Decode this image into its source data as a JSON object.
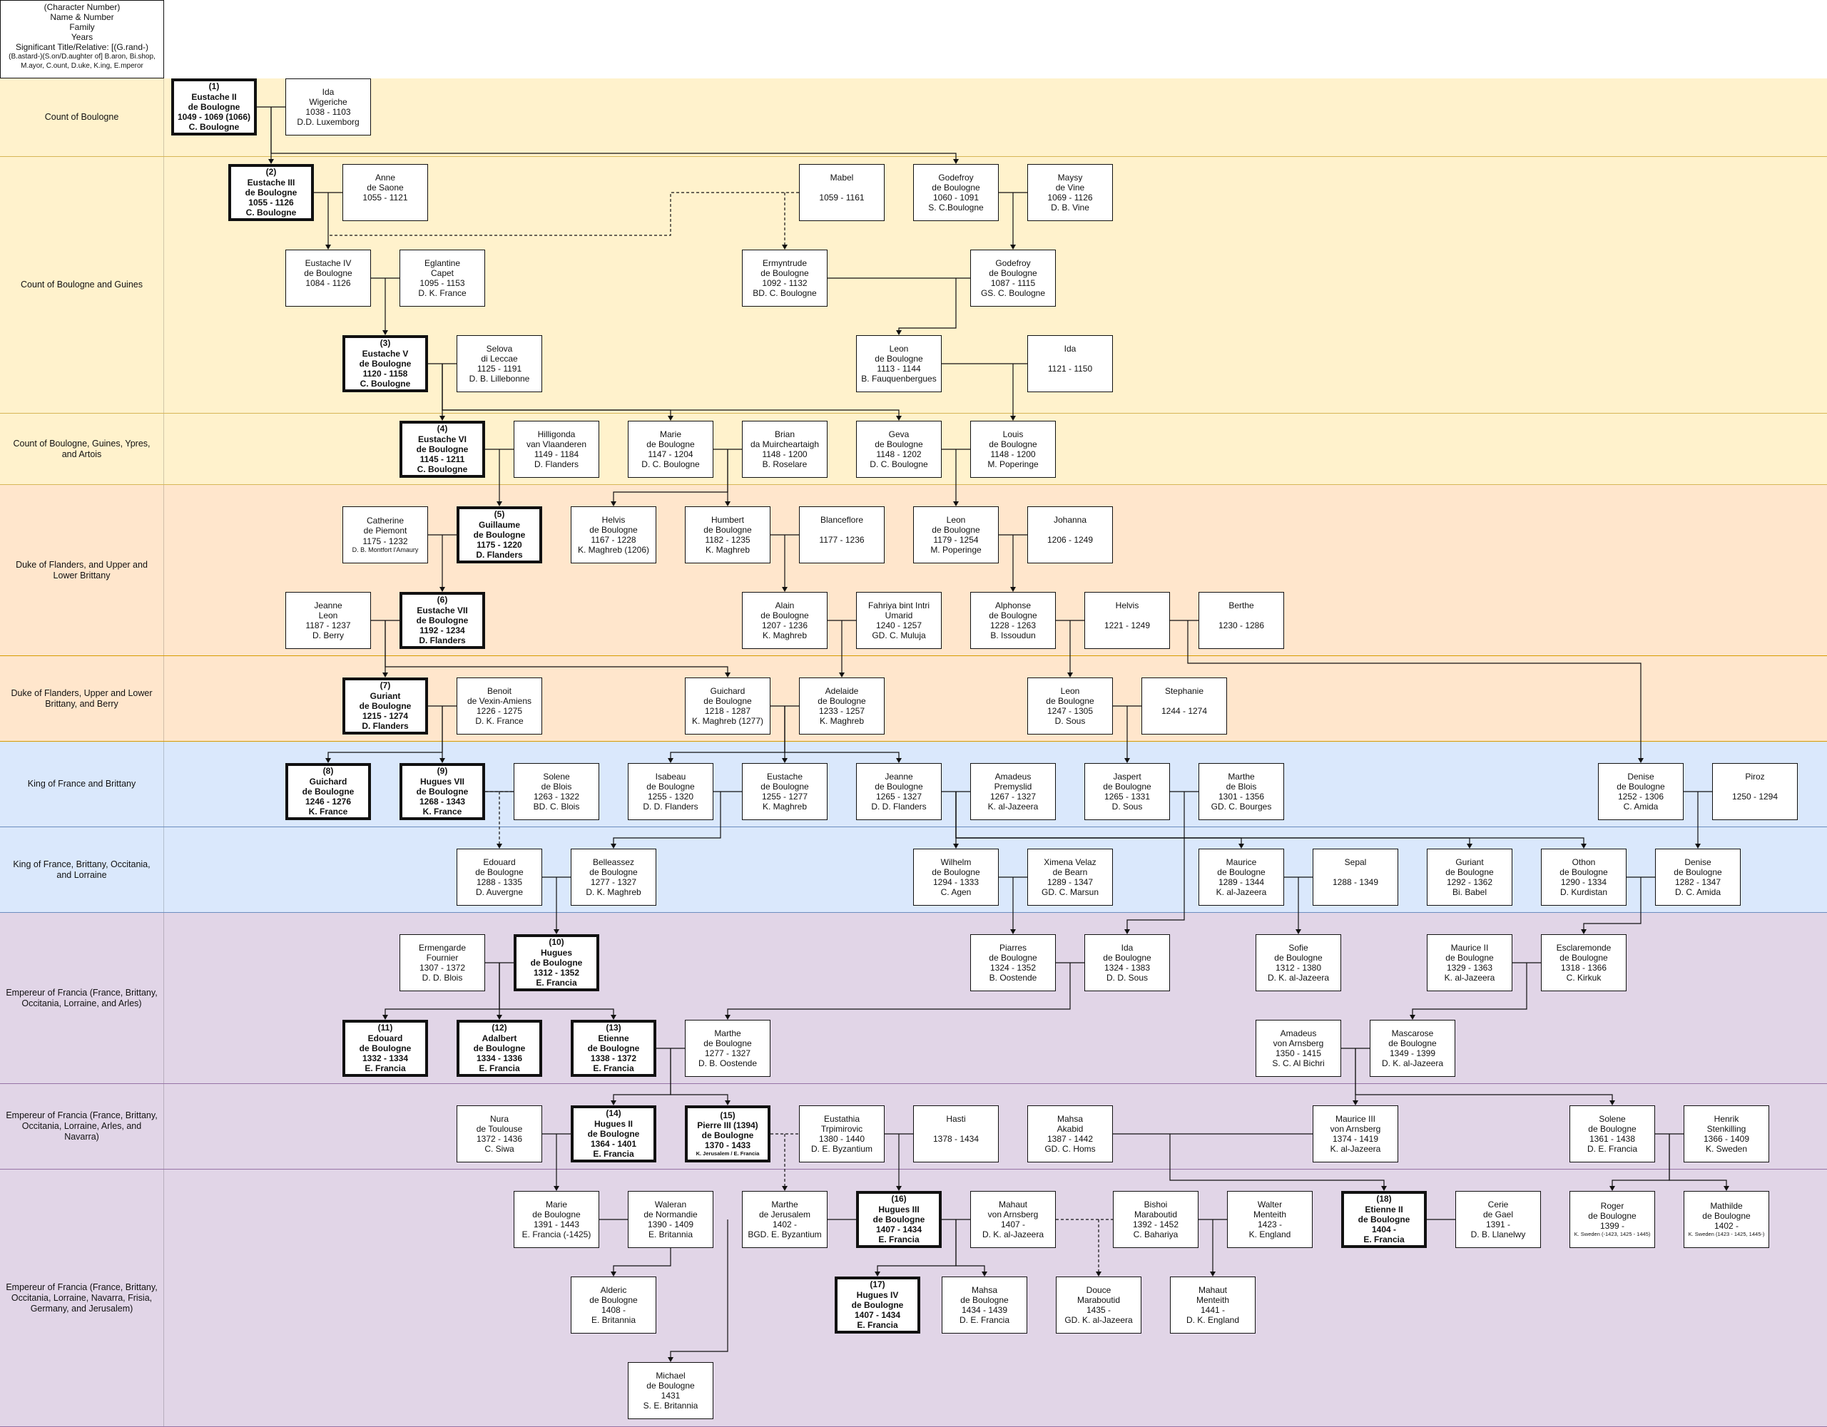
{
  "legend": {
    "l1": "(Character Number)",
    "l2": "Name & Number",
    "l3": "Family",
    "l4": "Years",
    "l5": "Significant Title/Relative: [(G.rand-)",
    "l6": "(B.astard-)(S.on/D.aughter of] B.aron, Bi.shop,",
    "l7": "M.ayor, C.ount, D.uke, K.ing, E.mperor"
  },
  "bands": [
    {
      "label": "Count of Boulogne",
      "color": "yellow"
    },
    {
      "label": "Count of Boulogne and Guines",
      "color": "yellow"
    },
    {
      "label": "Count of Boulogne, Guines, Ypres, and Artois",
      "color": "yellow"
    },
    {
      "label": "Duke of Flanders, and Upper and Lower Brittany",
      "color": "orange"
    },
    {
      "label": "Duke of Flanders, Upper and Lower Brittany, and Berry",
      "color": "orange"
    },
    {
      "label": "King of France and Brittany",
      "color": "blue"
    },
    {
      "label": "King of France, Brittany, Occitania, and Lorraine",
      "color": "blue"
    },
    {
      "label": "Empereur of Francia (France, Brittany, Occitania, Lorraine, and Arles)",
      "color": "purple"
    },
    {
      "label": "Empereur of Francia (France, Brittany, Occitania, Lorraine, Arles, and Navarra)",
      "color": "purple"
    },
    {
      "label": "Empereur of Francia (France, Brittany, Occitania, Lorraine, Navarra, Frisia, Germany, and Jerusalem)",
      "color": "purple"
    }
  ],
  "people": [
    {
      "id": "p1",
      "main": true,
      "num": "(1)",
      "name": "Eustache II",
      "family": "de Boulogne",
      "years": "1049 - 1069 (1066)",
      "title": "C. Boulogne"
    },
    {
      "id": "ida1",
      "name": "Ida",
      "family": "Wigeriche",
      "years": "1038 - 1103",
      "title": "D.D. Luxemborg"
    },
    {
      "id": "p2",
      "main": true,
      "num": "(2)",
      "name": "Eustache III",
      "family": "de Boulogne",
      "years": "1055 - 1126",
      "title": "C. Boulogne"
    },
    {
      "id": "anne",
      "name": "Anne",
      "family": "de Saone",
      "years": "1055 - 1121",
      "title": ""
    },
    {
      "id": "mabel",
      "name": "Mabel",
      "family": "",
      "years": "1059 - 1161",
      "title": ""
    },
    {
      "id": "godefroy1",
      "name": "Godefroy",
      "family": "de Boulogne",
      "years": "1060 - 1091",
      "title": "S. C.Boulogne"
    },
    {
      "id": "maysy",
      "name": "Maysy",
      "family": "de Vine",
      "years": "1069 - 1126",
      "title": "D. B. Vine"
    },
    {
      "id": "eustache4",
      "name": "Eustache IV",
      "family": "de Boulogne",
      "years": "1084 - 1126",
      "title": ""
    },
    {
      "id": "eglantine",
      "name": "Eglantine",
      "family": "Capet",
      "years": "1095 - 1153",
      "title": "D. K. France"
    },
    {
      "id": "ermyntrude",
      "name": "Ermyntrude",
      "family": "de Boulogne",
      "years": "1092 - 1132",
      "title": "BD. C. Boulogne"
    },
    {
      "id": "godefroy2",
      "name": "Godefroy",
      "family": "de Boulogne",
      "years": "1087 - 1115",
      "title": "GS. C. Boulogne"
    },
    {
      "id": "p3",
      "main": true,
      "num": "(3)",
      "name": "Eustache V",
      "family": "de Boulogne",
      "years": "1120 - 1158",
      "title": "C. Boulogne"
    },
    {
      "id": "selova",
      "name": "Selova",
      "family": "di Leccae",
      "years": "1125 - 1191",
      "title": "D. B. Lillebonne"
    },
    {
      "id": "leon1",
      "name": "Leon",
      "family": "de Boulogne",
      "years": "1113 - 1144",
      "title": "B. Fauquenbergues"
    },
    {
      "id": "ida2",
      "name": "Ida",
      "family": "",
      "years": "1121 - 1150",
      "title": ""
    },
    {
      "id": "p4",
      "main": true,
      "num": "(4)",
      "name": "Eustache VI",
      "family": "de Boulogne",
      "years": "1145 - 1211",
      "title": "C. Boulogne"
    },
    {
      "id": "hilligonda",
      "name": "Hilligonda",
      "family": "van Vlaanderen",
      "years": "1149 - 1184",
      "title": "D. Flanders"
    },
    {
      "id": "marie1",
      "name": "Marie",
      "family": "de Boulogne",
      "years": "1147 - 1204",
      "title": "D. C. Boulogne"
    },
    {
      "id": "brian",
      "name": "Brian",
      "family": "da Muircheartaigh",
      "years": "1148 - 1200",
      "title": "B. Roselare"
    },
    {
      "id": "geva",
      "name": "Geva",
      "family": "de Boulogne",
      "years": "1148 - 1202",
      "title": "D. C. Boulogne"
    },
    {
      "id": "louis",
      "name": "Louis",
      "family": "de Boulogne",
      "years": "1148 - 1200",
      "title": "M. Poperinge"
    },
    {
      "id": "catherine",
      "name": "Catherine",
      "family": "de Piemont",
      "years": "1175 - 1232",
      "title": "D. B. Montfort l'Amaury",
      "small": true
    },
    {
      "id": "p5",
      "main": true,
      "num": "(5)",
      "name": "Guillaume",
      "family": "de Boulogne",
      "years": "1175 - 1220",
      "title": "D. Flanders"
    },
    {
      "id": "helvis1",
      "name": "Helvis",
      "family": "de Boulogne",
      "years": "1167 - 1228",
      "title": "K. Maghreb (1206)"
    },
    {
      "id": "humbert",
      "name": "Humbert",
      "family": "de Boulogne",
      "years": "1182 - 1235",
      "title": "K. Maghreb"
    },
    {
      "id": "blanceflore",
      "name": "Blanceflore",
      "family": "",
      "years": "1177 - 1236",
      "title": ""
    },
    {
      "id": "leon2",
      "name": "Leon",
      "family": "de Boulogne",
      "years": "1179 - 1254",
      "title": "M. Poperinge"
    },
    {
      "id": "johanna",
      "name": "Johanna",
      "family": "",
      "years": "1206 - 1249",
      "title": ""
    },
    {
      "id": "jeanne1",
      "name": "Jeanne",
      "family": "Leon",
      "years": "1187 - 1237",
      "title": "D. Berry"
    },
    {
      "id": "p6",
      "main": true,
      "num": "(6)",
      "name": "Eustache VII",
      "family": "de Boulogne",
      "years": "1192 - 1234",
      "title": "D. Flanders"
    },
    {
      "id": "alain",
      "name": "Alain",
      "family": "de Boulogne",
      "years": "1207 - 1236",
      "title": "K. Maghreb"
    },
    {
      "id": "fahriya",
      "name": "Fahriya bint Intri",
      "family": "Umarid",
      "years": "1240 - 1257",
      "title": "GD. C. Muluja"
    },
    {
      "id": "alphonse",
      "name": "Alphonse",
      "family": "de Boulogne",
      "years": "1228 - 1263",
      "title": "B. Issoudun"
    },
    {
      "id": "helvis2",
      "name": "Helvis",
      "family": "",
      "years": "1221 - 1249",
      "title": ""
    },
    {
      "id": "berthe",
      "name": "Berthe",
      "family": "",
      "years": "1230 - 1286",
      "title": ""
    },
    {
      "id": "p7",
      "main": true,
      "num": "(7)",
      "name": "Guriant",
      "family": "de Boulogne",
      "years": "1215 - 1274",
      "title": "D. Flanders"
    },
    {
      "id": "benoit",
      "name": "Benoit",
      "family": "de Vexin-Amiens",
      "years": "1226 - 1275",
      "title": "D. K. France"
    },
    {
      "id": "guichard1",
      "name": "Guichard",
      "family": "de Boulogne",
      "years": "1218 - 1287",
      "title": "K. Maghreb (1277)"
    },
    {
      "id": "adelaide",
      "name": "Adelaide",
      "family": "de Boulogne",
      "years": "1233 - 1257",
      "title": "K. Maghreb"
    },
    {
      "id": "leon3",
      "name": "Leon",
      "family": "de Boulogne",
      "years": "1247 - 1305",
      "title": "D. Sous"
    },
    {
      "id": "stephanie",
      "name": "Stephanie",
      "family": "",
      "years": "1244 - 1274",
      "title": ""
    },
    {
      "id": "p8",
      "main": true,
      "num": "(8)",
      "name": "Guichard",
      "family": "de Boulogne",
      "years": "1246 - 1276",
      "title": "K. France"
    },
    {
      "id": "p9",
      "main": true,
      "num": "(9)",
      "name": "Hugues VII",
      "family": "de Boulogne",
      "years": "1268 - 1343",
      "title": "K. France"
    },
    {
      "id": "solene1",
      "name": "Solene",
      "family": "de Blois",
      "years": "1263 - 1322",
      "title": "BD. C. Blois"
    },
    {
      "id": "isabeau",
      "name": "Isabeau",
      "family": "de Boulogne",
      "years": "1255 - 1320",
      "title": "D. D. Flanders"
    },
    {
      "id": "eustache8",
      "name": "Eustache",
      "family": "de Boulogne",
      "years": "1255 - 1277",
      "title": "K. Maghreb"
    },
    {
      "id": "jeanne2",
      "name": "Jeanne",
      "family": "de Boulogne",
      "years": "1265 - 1327",
      "title": "D. D. Flanders"
    },
    {
      "id": "amadeus1",
      "name": "Amadeus",
      "family": "Premyslid",
      "years": "1267 - 1327",
      "title": "K. al-Jazeera"
    },
    {
      "id": "jaspert",
      "name": "Jaspert",
      "family": "de Boulogne",
      "years": "1265 - 1331",
      "title": "D. Sous"
    },
    {
      "id": "marthe1",
      "name": "Marthe",
      "family": "de Blois",
      "years": "1301 - 1356",
      "title": "GD. C. Bourges"
    },
    {
      "id": "denise1",
      "name": "Denise",
      "family": "de Boulogne",
      "years": "1252 - 1306",
      "title": "C. Amida"
    },
    {
      "id": "piroz",
      "name": "Piroz",
      "family": "",
      "years": "1250 - 1294",
      "title": ""
    },
    {
      "id": "edouard1",
      "name": "Edouard",
      "family": "de Boulogne",
      "years": "1288 - 1335",
      "title": "D. Auvergne"
    },
    {
      "id": "belleassez",
      "name": "Belleassez",
      "family": "de Boulogne",
      "years": "1277 - 1327",
      "title": "D. K. Maghreb"
    },
    {
      "id": "wilhelm",
      "name": "Wilhelm",
      "family": "de Boulogne",
      "years": "1294 - 1333",
      "title": "C. Agen"
    },
    {
      "id": "ximena",
      "name": "Ximena Velaz",
      "family": "de Bearn",
      "years": "1289 - 1347",
      "title": "GD. C. Marsun"
    },
    {
      "id": "maurice1",
      "name": "Maurice",
      "family": "de Boulogne",
      "years": "1289 - 1344",
      "title": "K. al-Jazeera"
    },
    {
      "id": "sepal",
      "name": "Sepal",
      "family": "",
      "years": "1288 - 1349",
      "title": ""
    },
    {
      "id": "guriant2",
      "name": "Guriant",
      "family": "de Boulogne",
      "years": "1292 - 1362",
      "title": "Bi. Babel"
    },
    {
      "id": "othon",
      "name": "Othon",
      "family": "de Boulogne",
      "years": "1290 - 1334",
      "title": "D. Kurdistan"
    },
    {
      "id": "denise2",
      "name": "Denise",
      "family": "de Boulogne",
      "years": "1282 - 1347",
      "title": "D. C. Amida"
    },
    {
      "id": "ermengarde",
      "name": "Ermengarde",
      "family": "Fournier",
      "years": "1307 - 1372",
      "title": "D. D. Blois"
    },
    {
      "id": "p10",
      "main": true,
      "num": "(10)",
      "name": "Hugues",
      "family": "de Boulogne",
      "years": "1312 - 1352",
      "title": "E. Francia"
    },
    {
      "id": "piarres",
      "name": "Piarres",
      "family": "de Boulogne",
      "years": "1324 - 1352",
      "title": "B. Oostende"
    },
    {
      "id": "ida3",
      "name": "Ida",
      "family": "de Boulogne",
      "years": "1324 - 1383",
      "title": "D. D. Sous"
    },
    {
      "id": "sofie",
      "name": "Sofie",
      "family": "de Boulogne",
      "years": "1312 - 1380",
      "title": "D. K. al-Jazeera"
    },
    {
      "id": "maurice2",
      "name": "Maurice II",
      "family": "de Boulogne",
      "years": "1329 - 1363",
      "title": "K. al-Jazeera"
    },
    {
      "id": "esclaremonde",
      "name": "Esclaremonde",
      "family": "de Boulogne",
      "years": "1318 - 1366",
      "title": "C. Kirkuk"
    },
    {
      "id": "p11",
      "main": true,
      "num": "(11)",
      "name": "Edouard",
      "family": "de Boulogne",
      "years": "1332 - 1334",
      "title": "E. Francia"
    },
    {
      "id": "p12",
      "main": true,
      "num": "(12)",
      "name": "Adalbert",
      "family": "de Boulogne",
      "years": "1334 - 1336",
      "title": "E. Francia"
    },
    {
      "id": "p13",
      "main": true,
      "num": "(13)",
      "name": "Etienne",
      "family": "de Boulogne",
      "years": "1338 - 1372",
      "title": "E. Francia"
    },
    {
      "id": "marthe2",
      "name": "Marthe",
      "family": "de Boulogne",
      "years": "1277 - 1327",
      "title": "D. B. Oostende"
    },
    {
      "id": "amadeus2",
      "name": "Amadeus",
      "family": "von Arnsberg",
      "years": "1350 - 1415",
      "title": "S. C. Al Bichri"
    },
    {
      "id": "mascarose",
      "name": "Mascarose",
      "family": "de Boulogne",
      "years": "1349 - 1399",
      "title": "D. K. al-Jazeera"
    },
    {
      "id": "nura",
      "name": "Nura",
      "family": "de Toulouse",
      "years": "1372 - 1436",
      "title": "C. Siwa"
    },
    {
      "id": "p14",
      "main": true,
      "num": "(14)",
      "name": "Hugues II",
      "family": "de Boulogne",
      "years": "1364 - 1401",
      "title": "E. Francia"
    },
    {
      "id": "p15",
      "main": true,
      "num": "(15)",
      "name": "Pierre III (1394)",
      "family": "de Boulogne",
      "years": "1370 - 1433",
      "title": "K. Jerusalem / E. Francia",
      "tiny": true
    },
    {
      "id": "eustathia",
      "name": "Eustathia",
      "family": "Trpimirovic",
      "years": "1380 - 1440",
      "title": "D. E. Byzantium"
    },
    {
      "id": "hasti",
      "name": "Hasti",
      "family": "",
      "years": "1378 - 1434",
      "title": ""
    },
    {
      "id": "mahsa1",
      "name": "Mahsa",
      "family": "Akabid",
      "years": "1387 - 1442",
      "title": "GD. C. Homs"
    },
    {
      "id": "maurice3",
      "name": "Maurice III",
      "family": "von Arnsberg",
      "years": "1374 - 1419",
      "title": "K. al-Jazeera"
    },
    {
      "id": "solene2",
      "name": "Solene",
      "family": "de Boulogne",
      "years": "1361 - 1438",
      "title": "D. E. Francia"
    },
    {
      "id": "henrik",
      "name": "Henrik",
      "family": "Stenkilling",
      "years": "1366 - 1409",
      "title": "K. Sweden"
    },
    {
      "id": "marie2",
      "name": "Marie",
      "family": "de Boulogne",
      "years": "1391 - 1443",
      "title": "E. Francia (-1425)"
    },
    {
      "id": "waleran",
      "name": "Waleran",
      "family": "de Normandie",
      "years": "1390 - 1409",
      "title": "E. Britannia"
    },
    {
      "id": "marthe3",
      "name": "Marthe",
      "family": "de Jerusalem",
      "years": "1402 -",
      "title": "BGD. E. Byzantium"
    },
    {
      "id": "p16",
      "main": true,
      "num": "(16)",
      "name": "Hugues III",
      "family": "de Boulogne",
      "years": "1407 - 1434",
      "title": "E. Francia"
    },
    {
      "id": "mahaut1",
      "name": "Mahaut",
      "family": "von Arnsberg",
      "years": "1407 -",
      "title": "D. K. al-Jazeera"
    },
    {
      "id": "bishoi",
      "name": "Bishoi",
      "family": "Maraboutid",
      "years": "1392 - 1452",
      "title": "C. Bahariya"
    },
    {
      "id": "walter",
      "name": "Walter",
      "family": "Menteith",
      "years": "1423 -",
      "title": "K. England"
    },
    {
      "id": "p18",
      "main": true,
      "num": "(18)",
      "name": "Etienne II",
      "family": "de Boulogne",
      "years": "1404 -",
      "title": "E. Francia"
    },
    {
      "id": "cerie",
      "name": "Cerie",
      "family": "de Gael",
      "years": "1391 -",
      "title": "D. B. Llanelwy"
    },
    {
      "id": "roger",
      "name": "Roger",
      "family": "de Boulogne",
      "years": "1399 -",
      "title": "K. Sweden (-1423, 1425 - 1445)",
      "tiny": true
    },
    {
      "id": "mathilde",
      "name": "Mathilde",
      "family": "de Boulogne",
      "years": "1402 -",
      "title": "K. Sweden (1423 - 1425, 1445-)",
      "tiny": true
    },
    {
      "id": "alderic",
      "name": "Alderic",
      "family": "de Boulogne",
      "years": "1408 -",
      "title": "E. Britannia"
    },
    {
      "id": "p17",
      "main": true,
      "num": "(17)",
      "name": "Hugues IV",
      "family": "de Boulogne",
      "years": "1407 - 1434",
      "title": "E. Francia"
    },
    {
      "id": "mahsa2",
      "name": "Mahsa",
      "family": "de Boulogne",
      "years": "1434 - 1439",
      "title": "D. E. Francia"
    },
    {
      "id": "douce",
      "name": "Douce",
      "family": "Maraboutid",
      "years": "1435 -",
      "title": "GD. K. al-Jazeera"
    },
    {
      "id": "mahaut2",
      "name": "Mahaut",
      "family": "Menteith",
      "years": "1441 -",
      "title": "D. K. England"
    },
    {
      "id": "michael",
      "name": "Michael",
      "family": "de Boulogne",
      "years": "1431",
      "title": "S. E. Britannia"
    }
  ]
}
